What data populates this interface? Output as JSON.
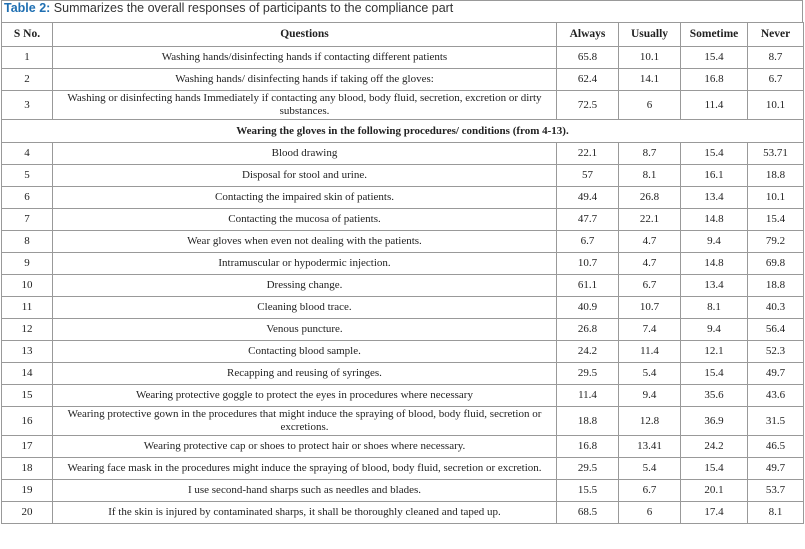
{
  "caption": {
    "label": "Table 2:",
    "text": " Summarizes the overall responses of participants to the compliance part"
  },
  "table": {
    "header": [
      "S No.",
      "Questions",
      "Always",
      "Usually",
      "Sometime",
      "Never"
    ],
    "rows": [
      [
        "1",
        "Washing hands/disinfecting hands if contacting different patients",
        "65.8",
        "10.1",
        "15.4",
        "8.7"
      ],
      [
        "2",
        "Washing hands/ disinfecting hands if taking off the gloves:",
        "62.4",
        "14.1",
        "16.8",
        "6.7"
      ],
      [
        "3",
        "Washing or disinfecting hands Immediately if contacting any blood, body fluid, secretion, excretion or dirty substances.",
        "72.5",
        "6",
        "11.4",
        "10.1"
      ],
      {
        "section": "Wearing the gloves in the following procedures/ conditions (from 4-13)."
      },
      [
        "4",
        "Blood drawing",
        "22.1",
        "8.7",
        "15.4",
        "53.71"
      ],
      [
        "5",
        "Disposal for stool and urine.",
        "57",
        "8.1",
        "16.1",
        "18.8"
      ],
      [
        "6",
        "Contacting the impaired skin of patients.",
        "49.4",
        "26.8",
        "13.4",
        "10.1"
      ],
      [
        "7",
        "Contacting the mucosa of patients.",
        "47.7",
        "22.1",
        "14.8",
        "15.4"
      ],
      [
        "8",
        "Wear gloves when even not dealing with the patients.",
        "6.7",
        "4.7",
        "9.4",
        "79.2"
      ],
      [
        "9",
        "Intramuscular or hypodermic injection.",
        "10.7",
        "4.7",
        "14.8",
        "69.8"
      ],
      [
        "10",
        "Dressing change.",
        "61.1",
        "6.7",
        "13.4",
        "18.8"
      ],
      [
        "11",
        "Cleaning blood trace.",
        "40.9",
        "10.7",
        "8.1",
        "40.3"
      ],
      [
        "12",
        "Venous puncture.",
        "26.8",
        "7.4",
        "9.4",
        "56.4"
      ],
      [
        "13",
        "Contacting blood sample.",
        "24.2",
        "11.4",
        "12.1",
        "52.3"
      ],
      [
        "14",
        "Recapping and reusing of syringes.",
        "29.5",
        "5.4",
        "15.4",
        "49.7"
      ],
      [
        "15",
        "Wearing protective goggle to protect the eyes in procedures where necessary",
        "11.4",
        "9.4",
        "35.6",
        "43.6"
      ],
      [
        "16",
        "Wearing protective gown in the procedures that might induce the spraying of blood, body fluid, secretion or excretions.",
        "18.8",
        "12.8",
        "36.9",
        "31.5"
      ],
      [
        "17",
        "Wearing protective cap or shoes to protect hair or shoes where necessary.",
        "16.8",
        "13.41",
        "24.2",
        "46.5"
      ],
      [
        "18",
        "Wearing face mask in the procedures might induce the spraying of blood, body fluid, secretion or excretion.",
        "29.5",
        "5.4",
        "15.4",
        "49.7"
      ],
      [
        "19",
        "I use second-hand sharps such as needles and blades.",
        "15.5",
        "6.7",
        "20.1",
        "53.7"
      ],
      [
        "20",
        "If the skin is injured by contaminated sharps, it shall be thoroughly cleaned and taped up.",
        "68.5",
        "6",
        "17.4",
        "8.1"
      ]
    ]
  }
}
